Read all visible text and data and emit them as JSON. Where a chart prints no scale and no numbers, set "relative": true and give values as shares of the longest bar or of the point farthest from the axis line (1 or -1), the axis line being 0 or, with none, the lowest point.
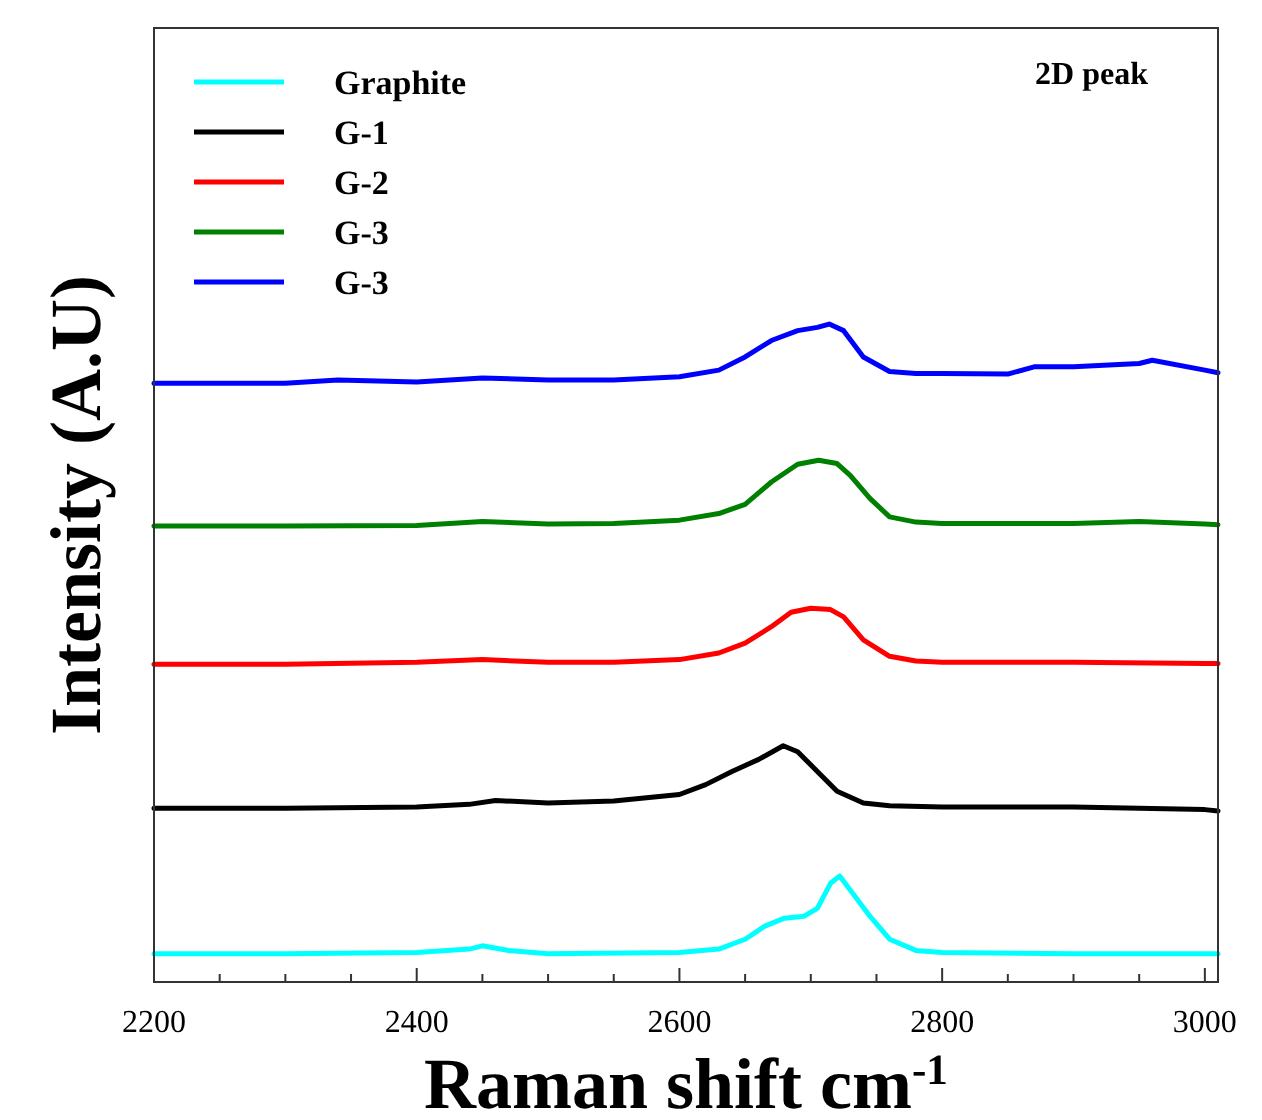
{
  "chart_data": {
    "type": "line",
    "xlabel": "Raman shift cm$^{-1}$",
    "ylabel": "Intensity (A.U)",
    "annotations": [
      "2D peak"
    ],
    "relative": true,
    "legend": "top left",
    "grid": false,
    "line_style": "solid",
    "xlim": [
      2200,
      3010
    ],
    "xticks": [
      2200,
      {
        "value": 2250,
        "label": null
      },
      {
        "value": 2300,
        "label": null
      },
      {
        "value": 2350,
        "label": null
      },
      2400,
      {
        "value": 2450,
        "label": null
      },
      {
        "value": 2500,
        "label": null
      },
      {
        "value": 2550,
        "label": null
      },
      2600,
      {
        "value": 2650,
        "label": null
      },
      {
        "value": 2700,
        "label": null
      },
      {
        "value": 2750,
        "label": null
      },
      2800,
      {
        "value": 2850,
        "label": null
      },
      {
        "value": 2900,
        "label": null
      },
      {
        "value": 2950,
        "label": null
      },
      3000
    ],
    "series": [
      {
        "name": "Graphite",
        "color": "#00ffff",
        "x": [
          2200,
          2300,
          2400,
          2440,
          2450,
          2470,
          2500,
          2600,
          2630,
          2650,
          2665,
          2680,
          2695,
          2705,
          2715,
          2722,
          2730,
          2745,
          2760,
          2780,
          2800,
          2900,
          3000,
          3010
        ],
        "values": [
          0.043,
          0.043,
          0.045,
          0.05,
          0.055,
          0.048,
          0.043,
          0.045,
          0.05,
          0.065,
          0.085,
          0.097,
          0.1,
          0.112,
          0.15,
          0.161,
          0.14,
          0.1,
          0.065,
          0.048,
          0.045,
          0.043,
          0.043,
          0.043
        ]
      },
      {
        "name": "G-1",
        "color": "#000000",
        "x": [
          2200,
          2300,
          2400,
          2440,
          2460,
          2500,
          2550,
          2600,
          2620,
          2640,
          2660,
          2679,
          2690,
          2705,
          2720,
          2740,
          2760,
          2800,
          2900,
          3000,
          3010
        ],
        "values": [
          0.264,
          0.264,
          0.266,
          0.27,
          0.276,
          0.272,
          0.275,
          0.285,
          0.3,
          0.32,
          0.338,
          0.359,
          0.35,
          0.32,
          0.29,
          0.272,
          0.268,
          0.266,
          0.266,
          0.262,
          0.26
        ]
      },
      {
        "name": "G-2",
        "color": "#ff0000",
        "x": [
          2200,
          2300,
          2400,
          2450,
          2500,
          2550,
          2600,
          2630,
          2650,
          2670,
          2685,
          2700,
          2715,
          2725,
          2740,
          2760,
          2780,
          2800,
          2900,
          3000,
          3010
        ],
        "values": [
          0.483,
          0.483,
          0.486,
          0.49,
          0.486,
          0.486,
          0.49,
          0.5,
          0.515,
          0.54,
          0.562,
          0.568,
          0.566,
          0.555,
          0.52,
          0.495,
          0.488,
          0.486,
          0.486,
          0.484,
          0.484
        ]
      },
      {
        "name": "G-3",
        "color": "#008000",
        "x": [
          2200,
          2300,
          2400,
          2450,
          2500,
          2550,
          2600,
          2630,
          2650,
          2670,
          2690,
          2706,
          2720,
          2730,
          2745,
          2760,
          2780,
          2800,
          2900,
          2950,
          3000,
          3010
        ],
        "values": [
          0.693,
          0.693,
          0.694,
          0.7,
          0.696,
          0.697,
          0.702,
          0.712,
          0.726,
          0.76,
          0.787,
          0.793,
          0.788,
          0.77,
          0.735,
          0.707,
          0.699,
          0.697,
          0.697,
          0.7,
          0.696,
          0.695
        ]
      },
      {
        "name": "G-3",
        "color": "#0000ff",
        "x": [
          2200,
          2300,
          2340,
          2400,
          2450,
          2500,
          2550,
          2600,
          2630,
          2650,
          2670,
          2690,
          2705,
          2714,
          2725,
          2740,
          2760,
          2780,
          2800,
          2850,
          2870,
          2900,
          2950,
          2960,
          3000,
          3010
        ],
        "values": [
          0.91,
          0.91,
          0.915,
          0.912,
          0.918,
          0.915,
          0.915,
          0.92,
          0.93,
          0.95,
          0.975,
          0.99,
          0.995,
          1,
          0.99,
          0.95,
          0.928,
          0.925,
          0.925,
          0.924,
          0.935,
          0.935,
          0.94,
          0.945,
          0.93,
          0.926
        ]
      }
    ]
  }
}
